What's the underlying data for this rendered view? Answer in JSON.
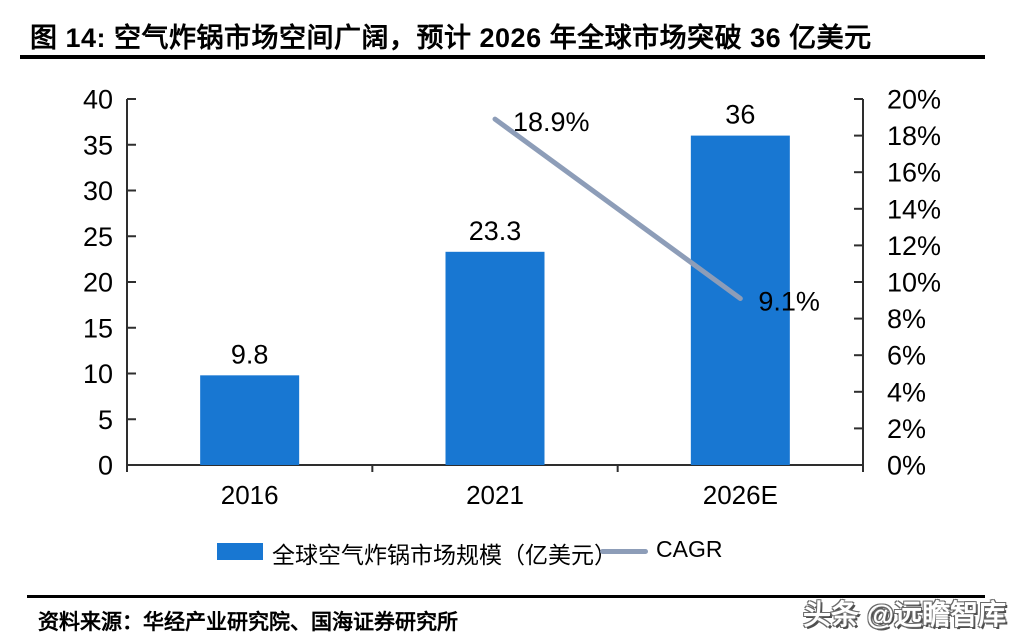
{
  "page": {
    "title": "图 14:  空气炸锅市场空间广阔，预计 2026 年全球市场突破 36 亿美元",
    "source": "资料来源：华经产业研究院、国海证券研究所",
    "watermark": "头条 @远瞻智库"
  },
  "colors": {
    "bar": "#1877D2",
    "line": "#8D9DB8",
    "axis": "#2E2E2E",
    "text": "#000000"
  },
  "chart_data": {
    "type": "bar",
    "title": "图 14:  空气炸锅市场空间广阔，预计 2026 年全球市场突破 36 亿美元",
    "categories": [
      "2016",
      "2021",
      "2026E"
    ],
    "series": [
      {
        "name": "全球空气炸锅市场规模（亿美元）",
        "type": "bar",
        "axis": "left",
        "values": [
          9.8,
          23.3,
          36
        ],
        "labels": [
          "9.8",
          "23.3",
          "36"
        ],
        "color": "#1877D2"
      },
      {
        "name": "CAGR",
        "type": "line",
        "axis": "right",
        "values": [
          null,
          18.9,
          9.1
        ],
        "labels": [
          null,
          "18.9%",
          "9.1%"
        ],
        "color": "#8D9DB8"
      }
    ],
    "left_axis": {
      "min": 0,
      "max": 40,
      "step": 5,
      "tick_labels": [
        "0",
        "5",
        "10",
        "15",
        "20",
        "25",
        "30",
        "35",
        "40"
      ]
    },
    "right_axis": {
      "min": 0,
      "max": 20,
      "step": 2,
      "tick_labels": [
        "0%",
        "2%",
        "4%",
        "6%",
        "8%",
        "10%",
        "12%",
        "14%",
        "16%",
        "18%",
        "20%"
      ]
    },
    "grid": false,
    "legend_position": "bottom",
    "xlabel": "",
    "ylabel_left": "",
    "ylabel_right": ""
  }
}
